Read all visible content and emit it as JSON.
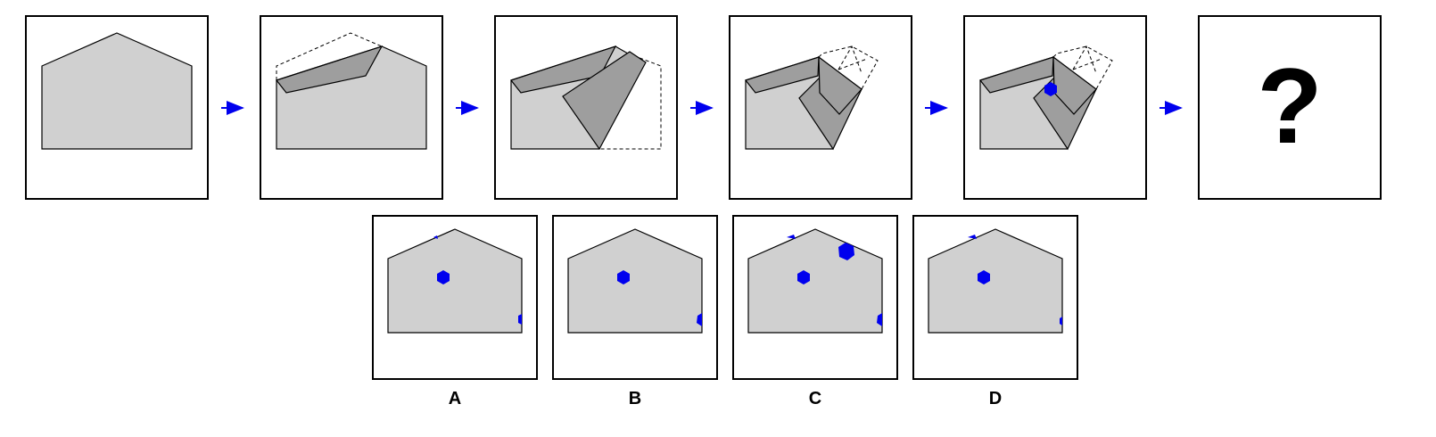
{
  "puzzle": {
    "question_mark": "?",
    "options": [
      {
        "label": "A"
      },
      {
        "label": "B"
      },
      {
        "label": "C"
      },
      {
        "label": "D"
      }
    ]
  },
  "colors": {
    "paper_fill": "#d0d0d0",
    "fold_fill": "#9e9e9e",
    "punch_hole": "#0000ee",
    "arrow": "#0000ee",
    "outline": "#000000"
  },
  "icons": [
    "right-arrow-icon",
    "hexagon-hole-icon"
  ]
}
